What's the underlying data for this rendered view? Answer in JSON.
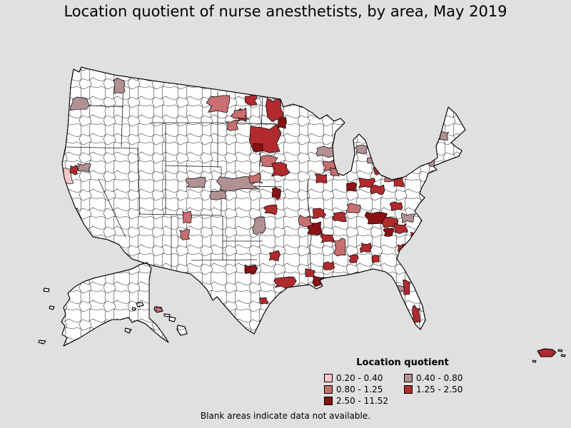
{
  "title": "Location quotient of nurse anesthetists, by area, May 2019",
  "legend": {
    "title": "Location quotient",
    "columns": [
      {
        "items": [
          {
            "label": "0.20 - 0.40",
            "color": "#FBC7CA"
          },
          {
            "label": "0.80 - 1.25",
            "color": "#C76F71"
          },
          {
            "label": "2.50 - 11.52",
            "color": "#8B1013"
          }
        ]
      },
      {
        "items": [
          {
            "label": "0.40 - 0.80",
            "color": "#B29192"
          },
          {
            "label": "1.25 - 2.50",
            "color": "#B02A2E"
          }
        ]
      }
    ]
  },
  "footnote": "Blank areas indicate data not available.",
  "colors": {
    "background": "#E0E0E0",
    "land": "#FFFFFF",
    "border": "#000000"
  },
  "chart_data": {
    "type": "choropleth",
    "title": "Location quotient of nurse anesthetists, by area, May 2019",
    "measure": "Location quotient",
    "period": "May 2019",
    "legend_position": "bottom-right",
    "classes": [
      {
        "range": "0.20 - 0.40",
        "min": 0.2,
        "max": 0.4,
        "color": "#FBC7CA"
      },
      {
        "range": "0.40 - 0.80",
        "min": 0.4,
        "max": 0.8,
        "color": "#B29192"
      },
      {
        "range": "0.80 - 1.25",
        "min": 0.8,
        "max": 1.25,
        "color": "#C76F71"
      },
      {
        "range": "1.25 - 2.50",
        "min": 1.25,
        "max": 2.5,
        "color": "#B02A2E"
      },
      {
        "range": "2.50 - 11.52",
        "min": 2.5,
        "max": 11.52,
        "color": "#8B1013"
      }
    ],
    "no_data_note": "Blank areas indicate data not available.",
    "highlights_note": "approximate screen positions [x,y,w,h,classIndex] of colored areas",
    "highlights": [
      [
        100,
        138,
        22,
        15,
        1
      ],
      [
        160,
        111,
        14,
        18,
        1
      ],
      [
        88,
        234,
        13,
        24,
        0
      ],
      [
        99,
        233,
        10,
        11,
        3
      ],
      [
        109,
        230,
        17,
        10,
        1
      ],
      [
        94,
        293,
        14,
        13,
        0
      ],
      [
        263,
        250,
        26,
        13,
        1
      ],
      [
        252,
        322,
        13,
        13,
        2
      ],
      [
        256,
        298,
        12,
        14,
        2
      ],
      [
        293,
        136,
        30,
        20,
        2
      ],
      [
        333,
        153,
        11,
        17,
        3
      ],
      [
        318,
        170,
        15,
        12,
        2
      ],
      [
        326,
        154,
        20,
        13,
        2
      ],
      [
        305,
        249,
        55,
        17,
        1
      ],
      [
        296,
        267,
        22,
        12,
        1
      ],
      [
        355,
        306,
        15,
        22,
        1
      ],
      [
        344,
        134,
        15,
        12,
        3
      ],
      [
        374,
        140,
        21,
        27,
        3
      ],
      [
        352,
        178,
        39,
        33,
        3
      ],
      [
        389,
        166,
        12,
        14,
        4
      ],
      [
        355,
        201,
        13,
        11,
        4
      ],
      [
        366,
        220,
        22,
        14,
        2
      ],
      [
        381,
        230,
        22,
        16,
        3
      ],
      [
        382,
        264,
        11,
        14,
        4
      ],
      [
        350,
        245,
        16,
        12,
        2
      ],
      [
        444,
        206,
        24,
        13,
        1
      ],
      [
        454,
        226,
        14,
        12,
        2
      ],
      [
        442,
        245,
        15,
        12,
        3
      ],
      [
        463,
        236,
        11,
        10,
        2
      ],
      [
        499,
        204,
        14,
        10,
        1
      ],
      [
        515,
        220,
        11,
        9,
        1
      ],
      [
        524,
        234,
        12,
        10,
        3
      ],
      [
        486,
        256,
        13,
        11,
        4
      ],
      [
        504,
        250,
        20,
        13,
        3
      ],
      [
        521,
        260,
        16,
        11,
        3
      ],
      [
        539,
        244,
        16,
        10,
        2
      ],
      [
        551,
        250,
        14,
        11,
        3
      ],
      [
        371,
        288,
        16,
        12,
        3
      ],
      [
        438,
        293,
        16,
        12,
        3
      ],
      [
        431,
        313,
        19,
        15,
        4
      ],
      [
        419,
        303,
        17,
        13,
        2
      ],
      [
        451,
        328,
        15,
        11,
        3
      ],
      [
        344,
        372,
        15,
        11,
        4
      ],
      [
        377,
        353,
        14,
        12,
        3
      ],
      [
        385,
        388,
        27,
        15,
        3
      ],
      [
        364,
        417,
        10,
        9,
        3
      ],
      [
        428,
        378,
        13,
        10,
        3
      ],
      [
        441,
        388,
        25,
        13,
        4
      ],
      [
        454,
        368,
        13,
        10,
        3
      ],
      [
        468,
        336,
        16,
        21,
        2
      ],
      [
        490,
        358,
        11,
        10,
        3
      ],
      [
        506,
        342,
        13,
        11,
        3
      ],
      [
        522,
        358,
        10,
        10,
        3
      ],
      [
        514,
        298,
        27,
        16,
        4
      ],
      [
        538,
        306,
        18,
        12,
        3
      ],
      [
        486,
        286,
        20,
        12,
        2
      ],
      [
        468,
        298,
        16,
        12,
        3
      ],
      [
        548,
        284,
        14,
        10,
        3
      ],
      [
        564,
        300,
        17,
        11,
        1
      ],
      [
        554,
        314,
        16,
        12,
        3
      ],
      [
        538,
        320,
        13,
        10,
        4
      ],
      [
        575,
        326,
        11,
        12,
        3
      ],
      [
        558,
        343,
        10,
        10,
        3
      ],
      [
        558,
        400,
        8,
        9,
        1
      ],
      [
        565,
        394,
        9,
        17,
        3
      ],
      [
        578,
        430,
        10,
        22,
        3
      ],
      [
        554,
        214,
        35,
        13,
        2
      ],
      [
        594,
        204,
        14,
        27,
        1
      ],
      [
        616,
        186,
        12,
        10,
        1
      ],
      [
        610,
        162,
        11,
        21,
        3
      ],
      [
        606,
        174,
        7,
        10,
        4
      ],
      [
        219,
        431,
        9,
        7,
        2
      ],
      [
        757,
        489,
        22,
        12,
        3
      ]
    ]
  }
}
